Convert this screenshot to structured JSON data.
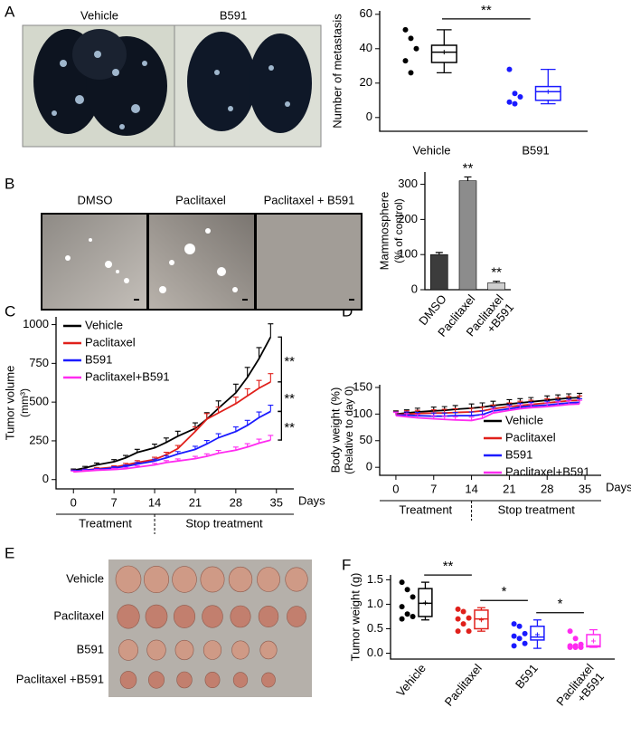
{
  "panel_labels": [
    "A",
    "B",
    "C",
    "D",
    "E",
    "F"
  ],
  "photos": {
    "A": [
      "Vehicle",
      "B591"
    ],
    "B": [
      "DMSO",
      "Paclitaxel",
      "Paclitaxel + B591"
    ],
    "E": [
      "Vehicle",
      "Paclitaxel",
      "B591",
      "Paclitaxel +B591"
    ]
  },
  "chart_data": [
    {
      "type": "box",
      "ylabel": [
        "Number of metastasis"
      ],
      "categories": [
        "Vehicle",
        "B591"
      ],
      "boxes": [
        {
          "color": "#000000",
          "points": [
            51,
            46,
            40,
            33,
            26
          ],
          "min": 26,
          "q1": 32,
          "median": 38,
          "q3": 42,
          "max": 51,
          "mean": 38
        },
        {
          "color": "#1a1aff",
          "points": [
            28,
            14,
            12,
            9,
            8
          ],
          "min": 8,
          "q1": 10,
          "median": 15,
          "q3": 18,
          "max": 28,
          "mean": 15
        }
      ],
      "annotations": [
        "**"
      ],
      "ylim": [
        -8,
        62
      ],
      "yticks": [
        0,
        20,
        40,
        60
      ]
    },
    {
      "type": "bar",
      "ylabel": [
        "Mammosphere",
        "(% of control)"
      ],
      "categories": [
        "DMSO",
        "Paclitaxel",
        [
          "Paclitaxel",
          "+B591"
        ]
      ],
      "values": [
        100,
        310,
        20
      ],
      "errors": [
        6,
        11,
        4
      ],
      "colors": [
        "#3c3c3c",
        "#8c8c8c",
        "#cfcfcf"
      ],
      "annotations": [
        "**",
        "**"
      ],
      "ylim": [
        0,
        335
      ],
      "yticks": [
        0,
        100,
        200,
        300
      ]
    },
    {
      "type": "line",
      "ylabel": [
        "Tumor volume",
        "(mm³)"
      ],
      "xlabel": "Days",
      "phases": [
        "Treatment",
        "Stop treatment"
      ],
      "legend": "upper left",
      "x": [
        0,
        2,
        4,
        7,
        9,
        11,
        14,
        16,
        18,
        21,
        23,
        25,
        28,
        30,
        32,
        34
      ],
      "series": [
        {
          "name": "Vehicle",
          "color": "#000000",
          "values": [
            60,
            75,
            95,
            115,
            140,
            175,
            205,
            240,
            280,
            330,
            390,
            460,
            560,
            660,
            780,
            920
          ],
          "errors": [
            8,
            10,
            12,
            14,
            16,
            20,
            24,
            28,
            32,
            36,
            42,
            48,
            56,
            64,
            72,
            85
          ]
        },
        {
          "name": "Paclitaxel",
          "color": "#e0201b",
          "values": [
            55,
            60,
            70,
            80,
            95,
            110,
            130,
            160,
            200,
            310,
            390,
            430,
            490,
            540,
            590,
            630
          ],
          "errors": [
            6,
            7,
            8,
            9,
            10,
            12,
            14,
            16,
            20,
            30,
            36,
            38,
            42,
            46,
            50,
            54
          ]
        },
        {
          "name": "B591",
          "color": "#1a1aff",
          "values": [
            55,
            60,
            65,
            75,
            85,
            100,
            120,
            140,
            165,
            195,
            230,
            270,
            310,
            350,
            400,
            440
          ],
          "errors": [
            6,
            7,
            7,
            8,
            9,
            10,
            12,
            14,
            16,
            20,
            22,
            26,
            30,
            32,
            36,
            40
          ]
        },
        {
          "name": "Paclitaxel+B591",
          "color": "#ff2bf0",
          "values": [
            50,
            55,
            60,
            65,
            70,
            80,
            95,
            110,
            120,
            135,
            150,
            170,
            190,
            210,
            235,
            255
          ],
          "errors": [
            5,
            6,
            6,
            7,
            8,
            9,
            10,
            12,
            13,
            15,
            16,
            18,
            20,
            22,
            26,
            30
          ]
        }
      ],
      "annotations": [
        "**",
        "**",
        "**"
      ],
      "xlim": [
        -3,
        38
      ],
      "xticks": [
        0,
        7,
        14,
        21,
        28,
        35
      ],
      "ylim": [
        -60,
        1050
      ],
      "yticks": [
        0,
        250,
        500,
        750,
        1000
      ]
    },
    {
      "type": "line",
      "ylabel": [
        "Body weight (%)",
        "(Relative to day 0)"
      ],
      "xlabel": "Days",
      "phases": [
        "Treatment",
        "Stop treatment"
      ],
      "legend": "lower right",
      "x": [
        0,
        2,
        4,
        7,
        9,
        11,
        14,
        16,
        18,
        21,
        23,
        25,
        28,
        30,
        32,
        34
      ],
      "series": [
        {
          "name": "Vehicle",
          "color": "#000000",
          "values": [
            100,
            102,
            104,
            106,
            107,
            109,
            111,
            113,
            116,
            119,
            121,
            123,
            126,
            128,
            130,
            131
          ],
          "errors": [
            6,
            6,
            7,
            7,
            7,
            7,
            8,
            8,
            8,
            8,
            8,
            8,
            8,
            8,
            8,
            8
          ]
        },
        {
          "name": "Paclitaxel",
          "color": "#e0201b",
          "values": [
            99,
            100,
            101,
            102,
            102,
            103,
            104,
            106,
            110,
            114,
            116,
            118,
            121,
            123,
            125,
            126
          ],
          "errors": [
            6,
            6,
            6,
            6,
            7,
            7,
            7,
            7,
            7,
            7,
            8,
            8,
            8,
            8,
            8,
            8
          ]
        },
        {
          "name": "B591",
          "color": "#1a1aff",
          "values": [
            98,
            98,
            97,
            96,
            96,
            97,
            97,
            99,
            106,
            110,
            113,
            115,
            117,
            119,
            121,
            122
          ],
          "errors": [
            6,
            6,
            6,
            6,
            6,
            6,
            7,
            7,
            7,
            7,
            7,
            7,
            7,
            7,
            7,
            7
          ]
        },
        {
          "name": "Paclitaxel+B591",
          "color": "#ff2bf0",
          "values": [
            97,
            95,
            93,
            91,
            90,
            89,
            88,
            92,
            102,
            107,
            110,
            112,
            114,
            116,
            118,
            119
          ],
          "errors": [
            6,
            6,
            6,
            6,
            6,
            6,
            6,
            6,
            7,
            7,
            7,
            7,
            7,
            7,
            7,
            7
          ]
        }
      ],
      "annotations": [],
      "xlim": [
        -3,
        38
      ],
      "xticks": [
        0,
        7,
        14,
        21,
        28,
        35
      ],
      "ylim": [
        -15,
        155
      ],
      "yticks": [
        0,
        50,
        100,
        150
      ]
    },
    {
      "type": "box",
      "ylabel": [
        "Tumor weight (g)"
      ],
      "categories": [
        "Vehicle",
        "Paclitaxel",
        "B591",
        [
          "Paclitaxel",
          "+B591"
        ]
      ],
      "boxes": [
        {
          "color": "#000000",
          "points": [
            1.45,
            1.3,
            1.15,
            0.95,
            0.8,
            0.75,
            0.7
          ],
          "min": 0.68,
          "q1": 0.75,
          "median": 1.02,
          "q3": 1.32,
          "max": 1.45,
          "mean": 1.03
        },
        {
          "color": "#e0201b",
          "points": [
            0.9,
            0.85,
            0.72,
            0.7,
            0.6,
            0.45,
            0.45
          ],
          "min": 0.45,
          "q1": 0.5,
          "median": 0.7,
          "q3": 0.88,
          "max": 0.93,
          "mean": 0.68
        },
        {
          "color": "#1a1aff",
          "points": [
            0.6,
            0.55,
            0.4,
            0.35,
            0.3,
            0.2,
            0.15
          ],
          "min": 0.1,
          "q1": 0.27,
          "median": 0.33,
          "q3": 0.55,
          "max": 0.68,
          "mean": 0.38
        },
        {
          "color": "#ff2bf0",
          "points": [
            0.45,
            0.3,
            0.18,
            0.15,
            0.15,
            0.12,
            0.12,
            0.12
          ],
          "min": 0.12,
          "q1": 0.13,
          "median": 0.15,
          "q3": 0.38,
          "max": 0.48,
          "mean": 0.25
        }
      ],
      "annotations": [
        "**",
        "*",
        "*"
      ],
      "ylim": [
        -0.12,
        1.6
      ],
      "yticks": [
        {
          "value": 0,
          "label": "0.0"
        },
        0.5,
        {
          "value": 1,
          "label": "1.0"
        },
        1.5
      ]
    }
  ]
}
